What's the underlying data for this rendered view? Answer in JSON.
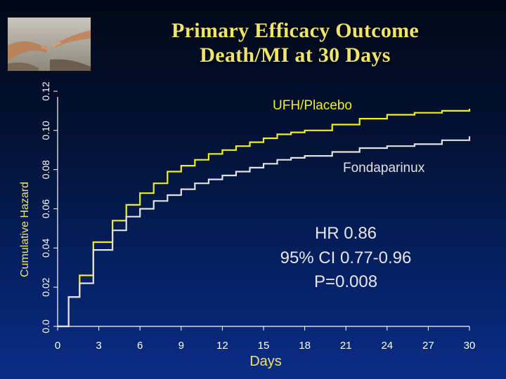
{
  "slide": {
    "title_line1": "Primary Efficacy Outcome",
    "title_line2": "Death/MI at 30 Days",
    "stats": {
      "hr": "HR 0.86",
      "ci": "95% CI 0.77-0.96",
      "p": "P=0.008"
    }
  },
  "colors": {
    "ufh_placebo": "#f0f01e",
    "fondaparinux": "#e2e2e2",
    "axis": "#ffffff",
    "axis_label": "#f0e56a",
    "title": "#f0e56a"
  },
  "chart_data": {
    "type": "line",
    "step": true,
    "xlabel": "Days",
    "ylabel": "Cumulative Hazard",
    "xlim": [
      0,
      30
    ],
    "ylim": [
      0,
      0.12
    ],
    "xticks": [
      0,
      3,
      6,
      9,
      12,
      15,
      18,
      21,
      24,
      27,
      30
    ],
    "yticks": [
      "0.0",
      "0.02",
      "0.04",
      "0.06",
      "0.08",
      "0.10",
      "0.12"
    ],
    "grid": false,
    "legend": "inline labels",
    "series": [
      {
        "name": "UFH/Placebo",
        "color": "#f0f01e",
        "x": [
          0,
          0.8,
          1.6,
          2.6,
          4.0,
          5.0,
          6.0,
          7.0,
          8.0,
          9.0,
          10.0,
          11.0,
          12.0,
          13.0,
          14.0,
          15.0,
          16.0,
          17.0,
          18.0,
          20.0,
          22.0,
          24.0,
          26.0,
          28.0,
          30.0
        ],
        "y": [
          0.0,
          0.015,
          0.026,
          0.043,
          0.054,
          0.062,
          0.068,
          0.073,
          0.079,
          0.082,
          0.085,
          0.088,
          0.09,
          0.092,
          0.094,
          0.096,
          0.098,
          0.099,
          0.1,
          0.103,
          0.106,
          0.108,
          0.109,
          0.11,
          0.111
        ]
      },
      {
        "name": "Fondaparinux",
        "color": "#e2e2e2",
        "x": [
          0,
          0.8,
          1.6,
          2.6,
          4.0,
          5.0,
          6.0,
          7.0,
          8.0,
          9.0,
          10.0,
          11.0,
          12.0,
          13.0,
          14.0,
          15.0,
          16.0,
          17.0,
          18.0,
          20.0,
          22.0,
          24.0,
          26.0,
          28.0,
          30.0
        ],
        "y": [
          0.0,
          0.015,
          0.022,
          0.039,
          0.049,
          0.056,
          0.06,
          0.064,
          0.067,
          0.07,
          0.073,
          0.075,
          0.077,
          0.079,
          0.081,
          0.083,
          0.085,
          0.086,
          0.087,
          0.089,
          0.091,
          0.092,
          0.093,
          0.095,
          0.097
        ]
      }
    ]
  }
}
